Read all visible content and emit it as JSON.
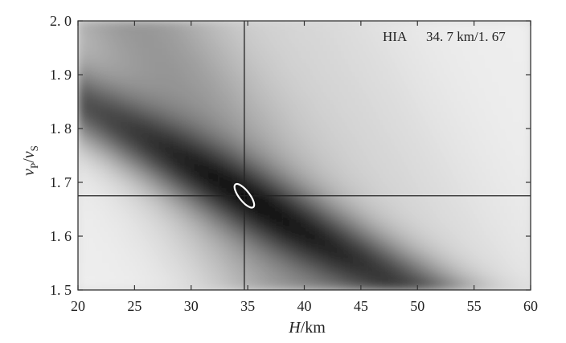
{
  "chart_data": {
    "type": "heatmap",
    "title": "",
    "xlabel_italic": "H",
    "xlabel_rest": "/km",
    "ylabel": {
      "v1": "v",
      "s1": "P",
      "slash": "/",
      "v2": "v",
      "s2": "S"
    },
    "xlim": [
      20,
      60
    ],
    "ylim": [
      1.5,
      2.0
    ],
    "xticks": [
      20,
      25,
      30,
      35,
      40,
      45,
      50,
      55,
      60
    ],
    "yticks": [
      1.5,
      1.6,
      1.7,
      1.8,
      1.9,
      2.0
    ],
    "xtick_labels": [
      "20",
      "25",
      "30",
      "35",
      "40",
      "45",
      "50",
      "55",
      "60"
    ],
    "ytick_labels": [
      "1. 5",
      "1. 6",
      "1. 7",
      "1. 8",
      "1. 9",
      "2. 0"
    ],
    "colormap": "grayscale, dark = high stacking amplitude",
    "best_fit": {
      "H": 34.7,
      "vp_vs": 1.675
    },
    "annotation": {
      "station": "HIA",
      "value": "34. 7 km/1. 67"
    },
    "uncertainty_ellipse": {
      "center": [
        34.7,
        1.675
      ],
      "color": "#ffffff"
    },
    "grid": false
  }
}
